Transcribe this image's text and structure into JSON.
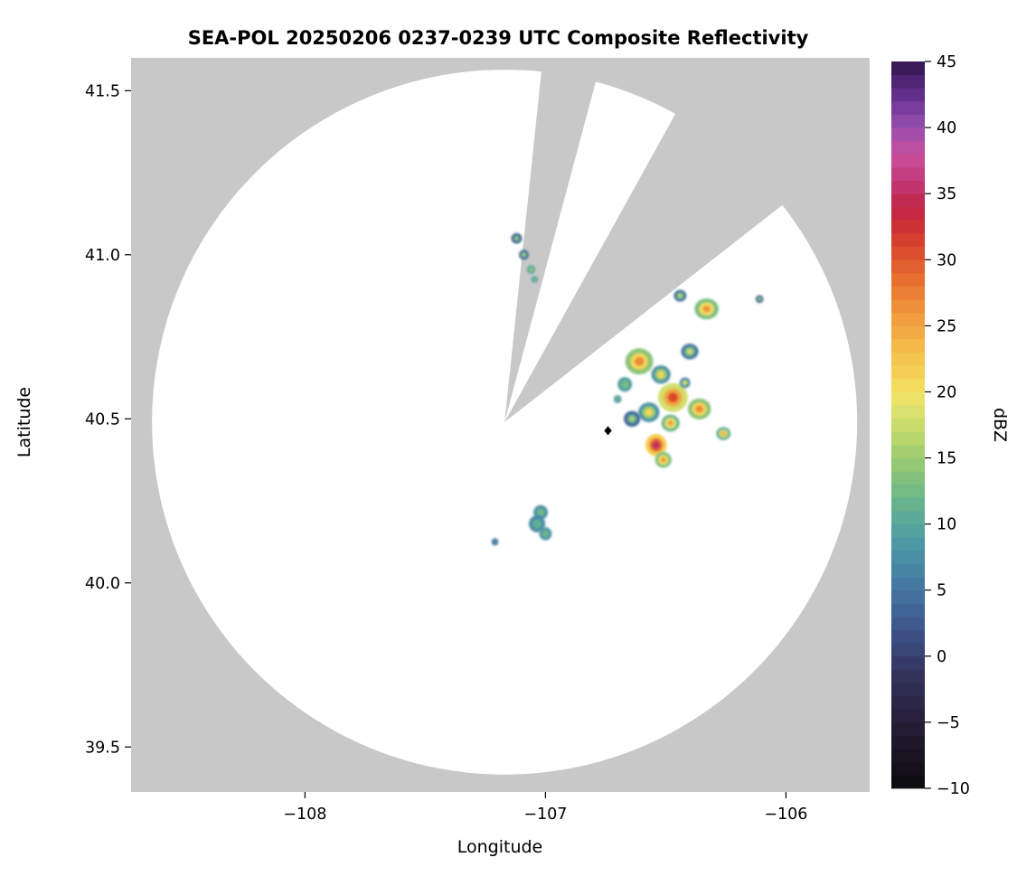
{
  "chart_data": {
    "type": "heatmap",
    "subtype": "radar_composite_reflectivity_ppi_map",
    "title": "SEA-POL 20250206 0237-0239 UTC Composite Reflectivity",
    "xlabel": "Longitude",
    "ylabel": "Latitude",
    "xlim": [
      -108.723,
      -105.652
    ],
    "ylim": [
      39.363,
      41.6
    ],
    "xticks": [
      {
        "value": -108,
        "label": "−108"
      },
      {
        "value": -107,
        "label": "−107"
      },
      {
        "value": -106,
        "label": "−106"
      }
    ],
    "yticks": [
      {
        "value": 39.5,
        "label": "39.5"
      },
      {
        "value": 40.0,
        "label": "40.0"
      },
      {
        "value": 40.5,
        "label": "40.5"
      },
      {
        "value": 41.0,
        "label": "41.0"
      },
      {
        "value": 41.5,
        "label": "41.5"
      }
    ],
    "grid": false,
    "legend_position": "right-colorbar",
    "panel_bg": "#c8c8c8",
    "scan_bg": "#ffffff",
    "radar": {
      "lon": -107.17,
      "lat": 40.49,
      "radius_deg_lon": 1.466,
      "radius_deg_lat": 1.074,
      "blocked_sectors_deg": [
        [
          6,
          15
        ],
        [
          29,
          52
        ]
      ]
    },
    "site_marker": {
      "lon": -106.74,
      "lat": 40.464,
      "shape": "diamond",
      "color": "#000000"
    },
    "colorbar": {
      "label": "dBZ",
      "min": -10,
      "max": 45,
      "ticks": [
        {
          "value": -10,
          "label": "−10"
        },
        {
          "value": -5,
          "label": "−5"
        },
        {
          "value": 0,
          "label": "0"
        },
        {
          "value": 5,
          "label": "5"
        },
        {
          "value": 10,
          "label": "10"
        },
        {
          "value": 15,
          "label": "15"
        },
        {
          "value": 20,
          "label": "20"
        },
        {
          "value": 25,
          "label": "25"
        },
        {
          "value": 30,
          "label": "30"
        },
        {
          "value": 35,
          "label": "35"
        },
        {
          "value": 40,
          "label": "40"
        },
        {
          "value": 45,
          "label": "45"
        }
      ],
      "palette": [
        [
          -10,
          "#0b0b0d"
        ],
        [
          -7,
          "#1c1626"
        ],
        [
          -4,
          "#2a2342"
        ],
        [
          -1,
          "#34355f"
        ],
        [
          1,
          "#3a4a7e"
        ],
        [
          3,
          "#3f5f92"
        ],
        [
          5,
          "#44749f"
        ],
        [
          7,
          "#4889a6"
        ],
        [
          9,
          "#4f9da4"
        ],
        [
          11,
          "#60af95"
        ],
        [
          13,
          "#7abd80"
        ],
        [
          15,
          "#9bcb70"
        ],
        [
          17,
          "#c0d96a"
        ],
        [
          19,
          "#e3e46f"
        ],
        [
          20,
          "#f2e160"
        ],
        [
          22,
          "#f5cc50"
        ],
        [
          24,
          "#f3b246"
        ],
        [
          26,
          "#ef973c"
        ],
        [
          28,
          "#e97833"
        ],
        [
          30,
          "#e0562c"
        ],
        [
          32,
          "#d1382e"
        ],
        [
          34,
          "#c02447"
        ],
        [
          36,
          "#c23a78"
        ],
        [
          38,
          "#c94f9e"
        ],
        [
          40,
          "#9a4fae"
        ],
        [
          42,
          "#6b3596"
        ],
        [
          44,
          "#452069"
        ],
        [
          45,
          "#2e1448"
        ]
      ]
    },
    "echoes_format": [
      "lon",
      "lat",
      "radius_lon_deg",
      "radius_lat_deg",
      "core_dbz"
    ],
    "echoes": [
      [
        -107.12,
        41.05,
        0.022,
        0.016,
        15
      ],
      [
        -107.09,
        41.0,
        0.02,
        0.015,
        16
      ],
      [
        -107.06,
        40.955,
        0.018,
        0.013,
        14
      ],
      [
        -107.045,
        40.925,
        0.014,
        0.01,
        13
      ],
      [
        -106.33,
        40.835,
        0.05,
        0.032,
        26
      ],
      [
        -106.44,
        40.875,
        0.026,
        0.018,
        17
      ],
      [
        -106.4,
        40.705,
        0.036,
        0.024,
        18
      ],
      [
        -106.61,
        40.675,
        0.058,
        0.04,
        27
      ],
      [
        -106.52,
        40.635,
        0.04,
        0.028,
        21
      ],
      [
        -106.67,
        40.605,
        0.03,
        0.022,
        13
      ],
      [
        -106.47,
        40.565,
        0.062,
        0.044,
        31
      ],
      [
        -106.36,
        40.53,
        0.048,
        0.032,
        27
      ],
      [
        -106.57,
        40.52,
        0.044,
        0.03,
        21
      ],
      [
        -106.64,
        40.5,
        0.034,
        0.024,
        16
      ],
      [
        -106.48,
        40.487,
        0.038,
        0.026,
        25
      ],
      [
        -106.26,
        40.455,
        0.03,
        0.02,
        24
      ],
      [
        -106.54,
        40.42,
        0.044,
        0.034,
        35
      ],
      [
        -106.51,
        40.375,
        0.034,
        0.024,
        26
      ],
      [
        -106.11,
        40.865,
        0.016,
        0.012,
        15
      ],
      [
        -107.02,
        40.215,
        0.03,
        0.022,
        12
      ],
      [
        -107.035,
        40.18,
        0.034,
        0.026,
        11
      ],
      [
        -107.0,
        40.15,
        0.026,
        0.02,
        12
      ],
      [
        -107.21,
        40.125,
        0.014,
        0.011,
        8
      ],
      [
        -106.7,
        40.56,
        0.016,
        0.012,
        12
      ],
      [
        -106.42,
        40.61,
        0.022,
        0.016,
        19
      ]
    ]
  }
}
